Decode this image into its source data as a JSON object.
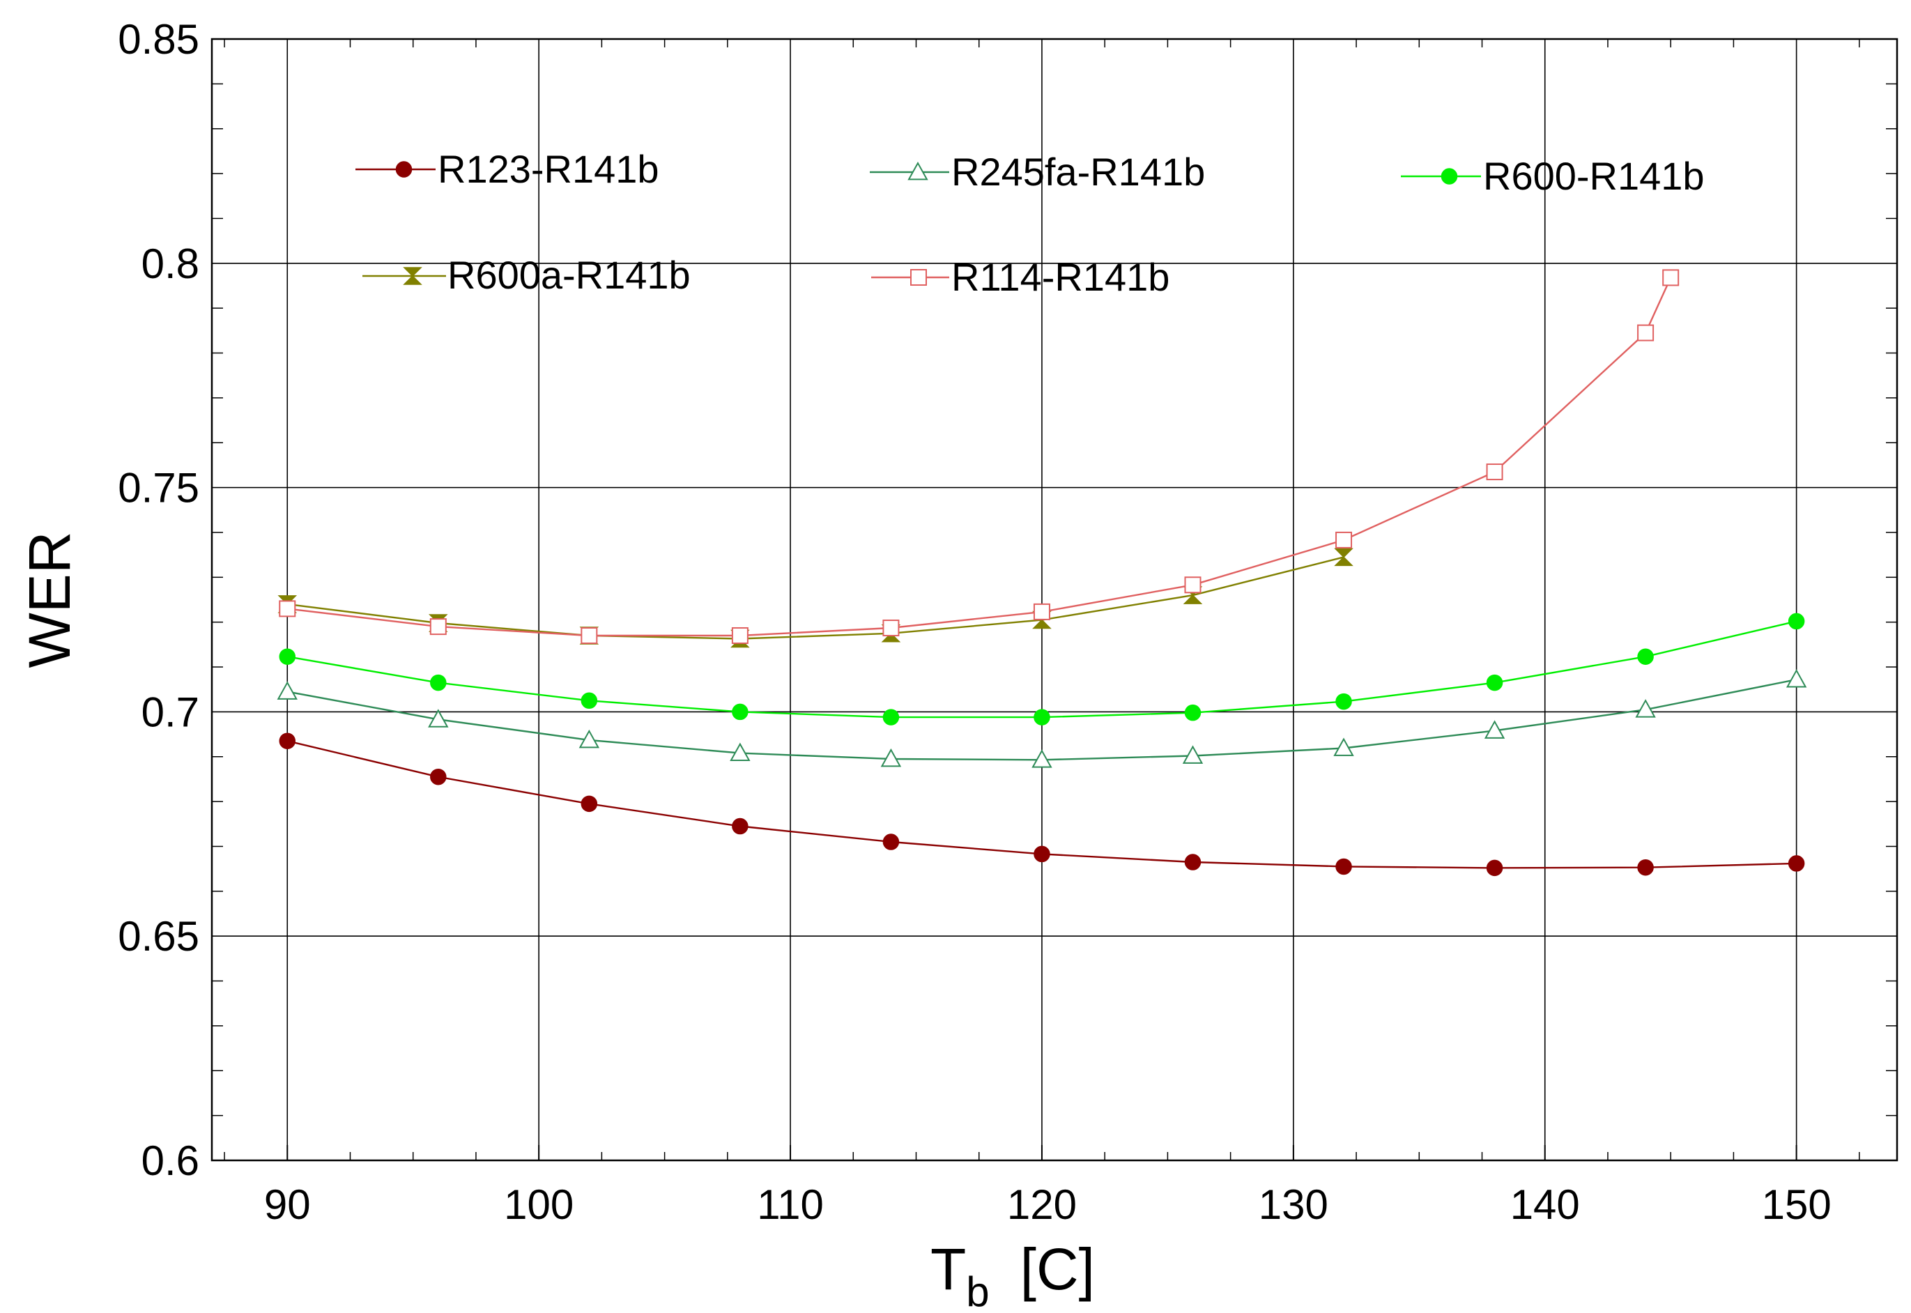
{
  "chart_data": {
    "type": "line",
    "title": "",
    "xlabel": {
      "main": "T",
      "sub": "b",
      "unit": "[C]"
    },
    "ylabel": "WER",
    "xlim": [
      87,
      154
    ],
    "ylim": [
      0.6,
      0.85
    ],
    "grid": true,
    "x_major_ticks": [
      90,
      100,
      110,
      120,
      130,
      140,
      150
    ],
    "x_tick_labels": [
      "90",
      "100",
      "110",
      "120",
      "130",
      "140",
      "150"
    ],
    "y_major_ticks": [
      0.6,
      0.65,
      0.7,
      0.75,
      0.8,
      0.85
    ],
    "y_tick_labels": [
      "0.6",
      "0.65",
      "0.7",
      "0.75",
      "0.8",
      "0.85"
    ],
    "series": [
      {
        "name": "R123-R141b",
        "color": "#8b0000",
        "marker": "filled-circle",
        "x": [
          90,
          96,
          102,
          108,
          114,
          120,
          126,
          132,
          138,
          144,
          150
        ],
        "y": [
          0.6935,
          0.6855,
          0.6795,
          0.6745,
          0.671,
          0.6683,
          0.6665,
          0.6655,
          0.6652,
          0.6653,
          0.6662
        ]
      },
      {
        "name": "R245fa-R141b",
        "color": "#2e8b57",
        "marker": "open-triangle",
        "x": [
          90,
          96,
          102,
          108,
          114,
          120,
          126,
          132,
          138,
          144,
          150
        ],
        "y": [
          0.7045,
          0.6983,
          0.6937,
          0.6908,
          0.6895,
          0.6893,
          0.6902,
          0.6919,
          0.6958,
          0.7005,
          0.7072
        ]
      },
      {
        "name": "R600-R141b",
        "color": "#00ee00",
        "marker": "filled-circle",
        "x": [
          90,
          96,
          102,
          108,
          114,
          120,
          126,
          132,
          138,
          144,
          150
        ],
        "y": [
          0.7123,
          0.7065,
          0.7025,
          0.7,
          0.6988,
          0.6988,
          0.6998,
          0.7023,
          0.7065,
          0.7123,
          0.7202
        ]
      },
      {
        "name": "R600a-R141b",
        "color": "#808000",
        "marker": "hourglass",
        "x": [
          90,
          96,
          102,
          108,
          114,
          120,
          126,
          132
        ],
        "y": [
          0.724,
          0.7198,
          0.717,
          0.7163,
          0.7175,
          0.7205,
          0.726,
          0.7345
        ]
      },
      {
        "name": "R114-R141b",
        "color": "#e06060",
        "marker": "open-square",
        "x": [
          90,
          96,
          102,
          108,
          114,
          120,
          126,
          132,
          138,
          144,
          145
        ],
        "y": [
          0.723,
          0.719,
          0.717,
          0.717,
          0.7187,
          0.7223,
          0.7283,
          0.7383,
          0.7535,
          0.7845,
          0.7968
        ]
      }
    ],
    "legend": [
      {
        "series": 0,
        "label": "R123-R141b"
      },
      {
        "series": 1,
        "label": "R245fa-R141b"
      },
      {
        "series": 2,
        "label": "R600-R141b"
      },
      {
        "series": 3,
        "label": "R600a-R141b"
      },
      {
        "series": 4,
        "label": "R114-R141b"
      }
    ]
  }
}
